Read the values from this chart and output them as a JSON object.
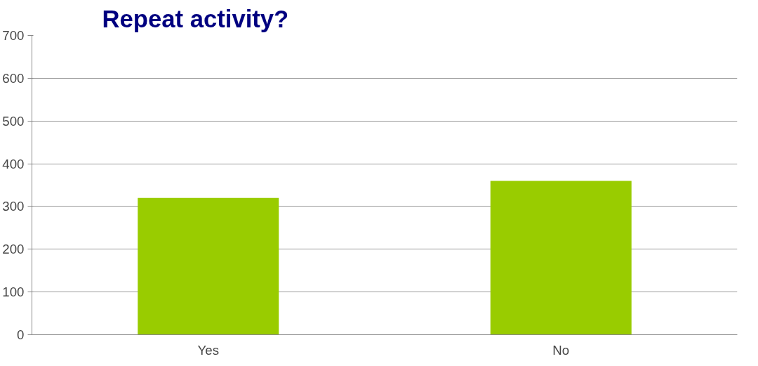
{
  "chart_data": {
    "type": "bar",
    "title": "Repeat activity?",
    "categories": [
      "Yes",
      "No"
    ],
    "values": [
      320,
      360
    ],
    "color": "#99cc00",
    "ylim": [
      0,
      700
    ],
    "yticks": [
      0,
      100,
      200,
      300,
      400,
      500,
      600,
      700
    ],
    "grid": "y"
  }
}
